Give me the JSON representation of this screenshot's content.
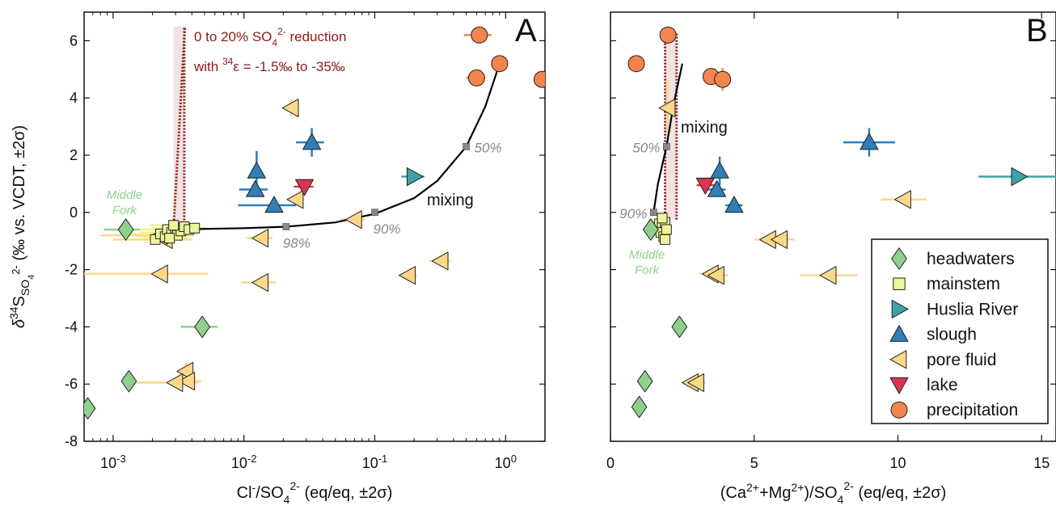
{
  "chart_data": [
    {
      "panel": "A",
      "type": "scatter",
      "xscale": "log",
      "xlim": [
        0.0006,
        2.0
      ],
      "ylim": [
        -8,
        7
      ],
      "xticks": [
        0.001,
        0.01,
        0.1,
        1.0
      ],
      "xtick_labels": [
        {
          "base": "10",
          "exp": "-3"
        },
        {
          "base": "10",
          "exp": "-2"
        },
        {
          "base": "10",
          "exp": "-1"
        },
        {
          "base": "10",
          "exp": "0"
        }
      ],
      "yticks": [
        -8,
        -6,
        -4,
        -2,
        0,
        2,
        4,
        6
      ],
      "ytick_labels": [
        "-8",
        "-6",
        "-4",
        "-2",
        "0",
        "2",
        "4",
        "6"
      ],
      "xlabel": {
        "pre": "Cl",
        "sup1": "-",
        "mid": "/SO",
        "sub": "4",
        "sup2": "2-",
        "post": " (eq/eq, ±2σ)"
      },
      "ylabel": {
        "pre": "δ",
        "sup1": "34",
        "mid": "S",
        "sub": "SO",
        "subsub": "4",
        "sup2": "2-",
        "post": " (‰ vs. VCDT, ±2σ)"
      },
      "series": [
        {
          "name": "headwaters",
          "points": [
            [
              0.00064,
              -6.85,
              0,
              0
            ],
            [
              0.00125,
              -0.6,
              0.0004,
              0
            ],
            [
              0.00132,
              -5.9,
              0,
              0
            ],
            [
              0.0048,
              -4.0,
              0.0015,
              0
            ]
          ]
        },
        {
          "name": "mainstem",
          "points": [
            [
              0.0021,
              -0.95,
              0.001,
              0
            ],
            [
              0.0023,
              -0.75,
              0.001,
              0
            ],
            [
              0.0025,
              -0.85,
              0.001,
              0
            ],
            [
              0.0026,
              -0.6,
              0.001,
              0
            ],
            [
              0.0028,
              -0.7,
              0.0012,
              0
            ],
            [
              0.003,
              -0.55,
              0.001,
              0
            ],
            [
              0.0031,
              -0.8,
              0.001,
              0
            ],
            [
              0.0033,
              -0.65,
              0.001,
              0
            ],
            [
              0.0035,
              -0.5,
              0.001,
              0
            ],
            [
              0.0038,
              -0.6,
              0.001,
              0
            ],
            [
              0.0042,
              -0.55,
              0.001,
              0
            ],
            [
              0.0027,
              -0.9,
              0.001,
              0
            ],
            [
              0.0029,
              -0.45,
              0.001,
              0
            ]
          ]
        },
        {
          "name": "Huslia River",
          "points": [
            [
              0.2,
              1.25,
              0.04,
              0
            ]
          ]
        },
        {
          "name": "slough",
          "points": [
            [
              0.0125,
              1.45,
              0,
              0.7
            ],
            [
              0.0122,
              0.8,
              0.003,
              0
            ],
            [
              0.017,
              0.25,
              0.008,
              0
            ],
            [
              0.033,
              2.45,
              0.008,
              0.5
            ]
          ]
        },
        {
          "name": "pore fluid",
          "points": [
            [
              0.0025,
              -0.95,
              0.0015,
              0
            ],
            [
              0.0023,
              -0.8,
              0.0015,
              0
            ],
            [
              0.0023,
              -2.15,
              0.003,
              0
            ],
            [
              0.0036,
              -5.55,
              0,
              0.3
            ],
            [
              0.0037,
              -5.9,
              0.001,
              0
            ],
            [
              0.003,
              -5.95,
              0.0015,
              0
            ],
            [
              0.0135,
              -0.9,
              0.003,
              0
            ],
            [
              0.0135,
              -2.45,
              0.004,
              0
            ],
            [
              0.025,
              0.45,
              0.004,
              0
            ],
            [
              0.023,
              3.65,
              0,
              0.3
            ],
            [
              0.07,
              -0.25,
              0.015,
              0
            ],
            [
              0.18,
              -2.2,
              0.03,
              0
            ],
            [
              0.32,
              -1.7,
              0.06,
              0
            ]
          ]
        },
        {
          "name": "lake",
          "points": [
            [
              0.029,
              0.9,
              0.005,
              0
            ]
          ]
        },
        {
          "name": "precipitation",
          "points": [
            [
              0.63,
              6.2,
              0.15,
              0
            ],
            [
              0.9,
              5.2,
              0,
              0
            ],
            [
              0.6,
              4.7,
              0.1,
              0
            ],
            [
              1.9,
              4.65,
              0.2,
              0
            ]
          ]
        }
      ],
      "mixing_curve": [
        [
          0.0028,
          -0.6
        ],
        [
          0.01,
          -0.55
        ],
        [
          0.021,
          -0.5
        ],
        [
          0.05,
          -0.35
        ],
        [
          0.1,
          -0.05
        ],
        [
          0.2,
          0.5
        ],
        [
          0.3,
          1.1
        ],
        [
          0.5,
          2.3
        ],
        [
          0.7,
          3.7
        ],
        [
          0.9,
          5.2
        ]
      ],
      "mixing_markers": [
        {
          "x": 0.021,
          "y": -0.5,
          "label": "98%"
        },
        {
          "x": 0.1,
          "y": 0.0,
          "label": "90%"
        },
        {
          "x": 0.5,
          "y": 2.3,
          "label": "50%"
        }
      ],
      "reduction_wedge": {
        "x_lo": 0.0029,
        "x_hi": 0.0035,
        "y_bottom": -0.5,
        "y_top": 6.5
      },
      "annotations": {
        "mixing": "mixing",
        "reduction_line1": {
          "pre": "0 to 20% SO",
          "sub": "4",
          "sup": "2-",
          "post": " reduction"
        },
        "reduction_line2": {
          "pre": "with ",
          "sup": "34",
          "post": "ε = -1.5‰ to -35‰"
        },
        "middle_fork": [
          "Middle",
          "Fork"
        ]
      }
    },
    {
      "panel": "B",
      "type": "scatter",
      "xscale": "linear",
      "xlim": [
        0,
        15.5
      ],
      "ylim": [
        -8,
        7
      ],
      "xticks": [
        0,
        5,
        10,
        15
      ],
      "xtick_labels": [
        "0",
        "5",
        "10",
        "15"
      ],
      "yticks": [
        -8,
        -6,
        -4,
        -2,
        0,
        2,
        4,
        6
      ],
      "xlabel": {
        "t1": "(Ca",
        "s1": "2+",
        "t2": "+Mg",
        "s2": "2+",
        "t3": ")/SO",
        "sub": "4",
        "s3": "2-",
        "t4": " (eq/eq, ±2σ)"
      },
      "series": [
        {
          "name": "headwaters",
          "points": [
            [
              1.0,
              -6.8,
              0,
              0
            ],
            [
              1.2,
              -5.9,
              0,
              0
            ],
            [
              2.4,
              -4.0,
              0,
              0
            ],
            [
              1.4,
              -0.6,
              0,
              0
            ]
          ]
        },
        {
          "name": "mainstem",
          "points": [
            [
              1.7,
              -0.4,
              0,
              0
            ],
            [
              1.8,
              -0.5,
              0,
              0
            ],
            [
              1.9,
              -0.35,
              0,
              0
            ],
            [
              1.75,
              -0.7,
              0,
              0
            ],
            [
              1.85,
              -0.85,
              0,
              0
            ],
            [
              1.95,
              -0.6,
              0,
              0
            ],
            [
              1.8,
              -0.2,
              0,
              0
            ],
            [
              1.9,
              -0.95,
              0,
              0
            ]
          ]
        },
        {
          "name": "Huslia River",
          "points": [
            [
              14.2,
              1.25,
              1.4,
              0
            ]
          ]
        },
        {
          "name": "slough",
          "points": [
            [
              3.8,
              1.45,
              0,
              0.5
            ],
            [
              3.7,
              0.8,
              0.3,
              0
            ],
            [
              4.3,
              0.25,
              0.3,
              0
            ],
            [
              9.0,
              2.45,
              0.9,
              0.5
            ]
          ]
        },
        {
          "name": "pore fluid",
          "points": [
            [
              2.0,
              3.65,
              0.2,
              1.0
            ],
            [
              5.5,
              -0.95,
              0.5,
              0
            ],
            [
              5.9,
              -0.95,
              0.5,
              0
            ],
            [
              3.5,
              -2.15,
              0.4,
              0
            ],
            [
              3.7,
              -2.2,
              0.4,
              0
            ],
            [
              7.6,
              -2.2,
              1.0,
              0
            ],
            [
              10.2,
              0.45,
              0.8,
              0
            ],
            [
              2.8,
              -5.95,
              0.3,
              0
            ],
            [
              3.0,
              -5.95,
              0.3,
              0
            ]
          ]
        },
        {
          "name": "lake",
          "points": [
            [
              3.3,
              0.95,
              0.3,
              0
            ]
          ]
        },
        {
          "name": "precipitation",
          "points": [
            [
              2.0,
              6.2,
              0,
              0
            ],
            [
              0.9,
              5.2,
              0,
              0
            ],
            [
              3.5,
              4.75,
              0.2,
              0
            ],
            [
              3.9,
              4.65,
              0,
              0.4
            ]
          ]
        }
      ],
      "mixing_curve": [
        [
          1.45,
          -0.1
        ],
        [
          1.5,
          0.0
        ],
        [
          1.65,
          1.0
        ],
        [
          1.95,
          2.3
        ],
        [
          2.2,
          3.8
        ],
        [
          2.5,
          5.2
        ]
      ],
      "mixing_markers": [
        {
          "x": 1.5,
          "y": 0.0,
          "label": "90%"
        },
        {
          "x": 1.95,
          "y": 2.3,
          "label": "50%"
        }
      ],
      "reduction_wedge": {
        "x_lo": 1.9,
        "x_hi": 2.3,
        "y_bottom": -0.25,
        "y_top": 6.3
      },
      "annotations": {
        "mixing": "mixing",
        "middle_fork": [
          "Middle",
          "Fork"
        ]
      },
      "legend": {
        "placement": "bottom-right",
        "entries": [
          "headwaters",
          "mainstem",
          "Huslia River",
          "slough",
          "pore fluid",
          "lake",
          "precipitation"
        ]
      }
    }
  ],
  "panel_letters": [
    "A",
    "B"
  ],
  "colors": {
    "headwaters": "#8fd18c",
    "mainstem": "#eef59a",
    "Huslia River": "#3aa3a8",
    "slough": "#2f7fb8",
    "pore fluid": "#fad88a",
    "lake": "#d8364f",
    "precipitation": "#f4834e",
    "mixing_line": "#000000",
    "reduction": "#8b1a1a",
    "middle_fork": "#8fd18c",
    "mixing_marker": "#888888"
  }
}
